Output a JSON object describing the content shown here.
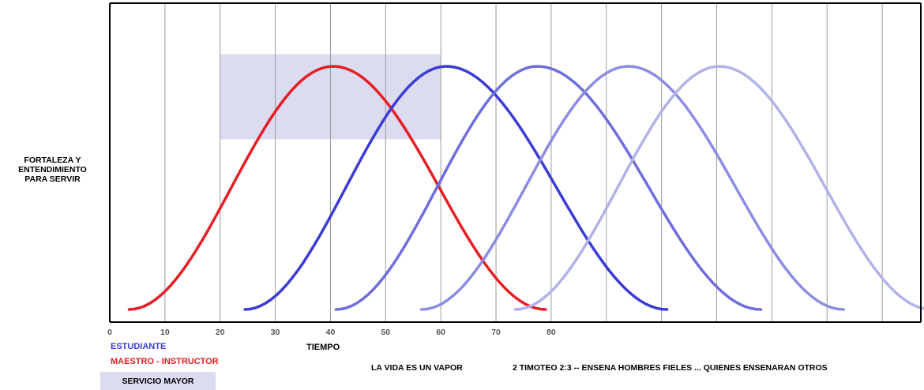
{
  "chart_data": {
    "type": "line",
    "ylabel": "FORTALEZA Y\nENTENDIMIENTO\nPARA SERVIR",
    "xlabel": "TIEMPO",
    "x_ticks": [
      "0",
      "10",
      "20",
      "30",
      "40",
      "50",
      "60",
      "70",
      "80"
    ],
    "xlim": [
      0,
      147
    ],
    "ylim": [
      0,
      1
    ],
    "grid": "vertical",
    "highlight_region": {
      "label": "SERVICIO MAYOR",
      "x_range": [
        20,
        60
      ],
      "y_range": [
        0.7,
        1.05
      ]
    },
    "series": [
      {
        "name": "MAESTRO - INSTRUCTOR",
        "color": "#e61e25",
        "x_range": [
          3.5,
          79
        ],
        "peak_x": 40.5,
        "peak_y": 1.0
      },
      {
        "name": "ESTUDIANTE",
        "color": "#3b3bd6",
        "x_range": [
          24.5,
          101
        ],
        "peak_x": 61,
        "peak_y": 1.0
      },
      {
        "name": "",
        "color": "#6e6edd",
        "x_range": [
          41,
          118
        ],
        "peak_x": 77.5,
        "peak_y": 1.0
      },
      {
        "name": "",
        "color": "#8c8ce4",
        "x_range": [
          56.5,
          133
        ],
        "peak_x": 94,
        "peak_y": 1.0
      },
      {
        "name": "",
        "color": "#b2b2ea",
        "x_range": [
          73.5,
          149
        ],
        "peak_x": 110.5,
        "peak_y": 1.0
      }
    ],
    "annotations": [
      "LA VIDA ES UN VAPOR",
      "2 TIMOTEO 2:3 -- ENSENA HOMBRES FIELES ... QUIENES ENSENARAN OTROS"
    ]
  },
  "legend": {
    "estudiante": "ESTUDIANTE",
    "maestro": "MAESTRO - INSTRUCTOR",
    "servicio": "SERVICIO MAYOR"
  }
}
